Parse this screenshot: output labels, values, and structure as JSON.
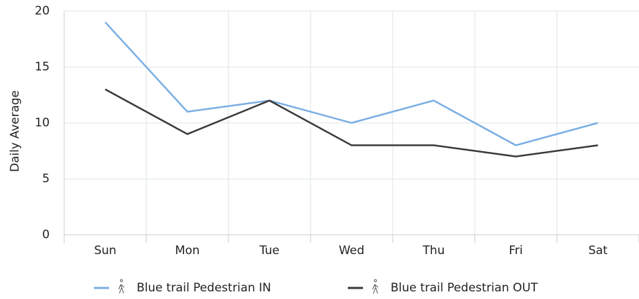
{
  "chart_data": {
    "type": "line",
    "y_label": "Daily Average",
    "categories": [
      "Sun",
      "Mon",
      "Tue",
      "Wed",
      "Thu",
      "Fri",
      "Sat"
    ],
    "series": [
      {
        "name": "Blue trail Pedestrian IN",
        "color": "#7aaee3",
        "values": [
          19,
          11,
          12,
          10,
          12,
          8,
          10
        ]
      },
      {
        "name": "Blue trail Pedestrian OUT",
        "color": "#3a3a3a",
        "values": [
          13,
          9,
          12,
          8,
          8,
          7,
          8
        ]
      }
    ],
    "ylim": [
      0,
      20
    ],
    "yticks": [
      0,
      5,
      10,
      15,
      20
    ],
    "grid": true,
    "legend": "bottom"
  }
}
